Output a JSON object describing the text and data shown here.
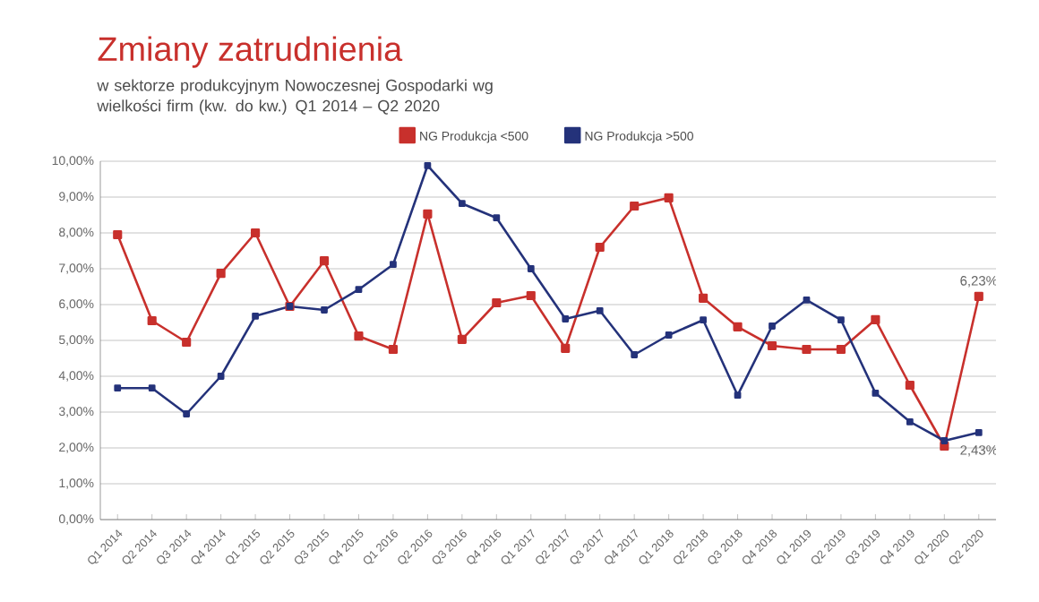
{
  "chart_data": {
    "type": "line",
    "title": "Zmiany zatrudnienia",
    "subtitle": "w sektorze produkcyjnym Nowoczesnej Gospodarki wg wielkości firm (kw. do kw.) Q1 2014 – Q2 2020",
    "categories": [
      "Q1 2014",
      "Q2 2014",
      "Q3 2014",
      "Q4 2014",
      "Q1 2015",
      "Q2 2015",
      "Q3 2015",
      "Q4 2015",
      "Q1 2016",
      "Q2 2016",
      "Q3 2016",
      "Q4 2016",
      "Q1 2017",
      "Q2 2017",
      "Q3 2017",
      "Q4 2017",
      "Q1 2018",
      "Q2 2018",
      "Q3 2018",
      "Q4 2018",
      "Q1 2019",
      "Q2 2019",
      "Q3 2019",
      "Q4 2019",
      "Q1 2020",
      "Q2 2020"
    ],
    "series": [
      {
        "name": "NG Produkcja <500",
        "color": "#c8302c",
        "values": [
          7.95,
          5.55,
          4.95,
          6.87,
          8.0,
          5.95,
          7.22,
          5.12,
          4.75,
          8.53,
          5.03,
          6.05,
          6.25,
          4.78,
          7.6,
          8.75,
          8.98,
          6.18,
          5.38,
          4.85,
          4.75,
          4.75,
          5.58,
          3.75,
          2.05,
          6.23
        ],
        "value_labels": [
          null,
          null,
          null,
          null,
          null,
          null,
          null,
          null,
          null,
          null,
          null,
          null,
          null,
          null,
          null,
          null,
          null,
          null,
          null,
          null,
          null,
          null,
          null,
          null,
          null,
          "6,23%"
        ]
      },
      {
        "name": "NG Produkcja >500",
        "color": "#24327a",
        "values": [
          3.67,
          3.67,
          2.95,
          4.0,
          5.68,
          5.95,
          5.85,
          6.42,
          7.12,
          9.88,
          8.82,
          8.42,
          7.0,
          5.6,
          5.83,
          4.6,
          5.15,
          5.57,
          3.47,
          5.4,
          6.13,
          5.57,
          3.53,
          2.73,
          2.2,
          2.43
        ],
        "value_labels": [
          null,
          null,
          null,
          null,
          null,
          null,
          null,
          null,
          null,
          null,
          null,
          null,
          null,
          null,
          null,
          null,
          null,
          null,
          null,
          null,
          null,
          null,
          null,
          null,
          null,
          "2,43%"
        ]
      }
    ],
    "ylim": [
      0,
      10
    ],
    "yticks": [
      {
        "value": 0,
        "label": "0,00%"
      },
      {
        "value": 1,
        "label": "1,00%"
      },
      {
        "value": 2,
        "label": "2,00%"
      },
      {
        "value": 3,
        "label": "3,00%"
      },
      {
        "value": 4,
        "label": "4,00%"
      },
      {
        "value": 5,
        "label": "5,00%"
      },
      {
        "value": 6,
        "label": "6,00%"
      },
      {
        "value": 7,
        "label": "7,00%"
      },
      {
        "value": 8,
        "label": "8,00%"
      },
      {
        "value": 9,
        "label": "9,00%"
      },
      {
        "value": 10,
        "label": "10,00%"
      }
    ],
    "grid": "y",
    "legend": "top",
    "marker": "square",
    "line_style": "solid"
  }
}
